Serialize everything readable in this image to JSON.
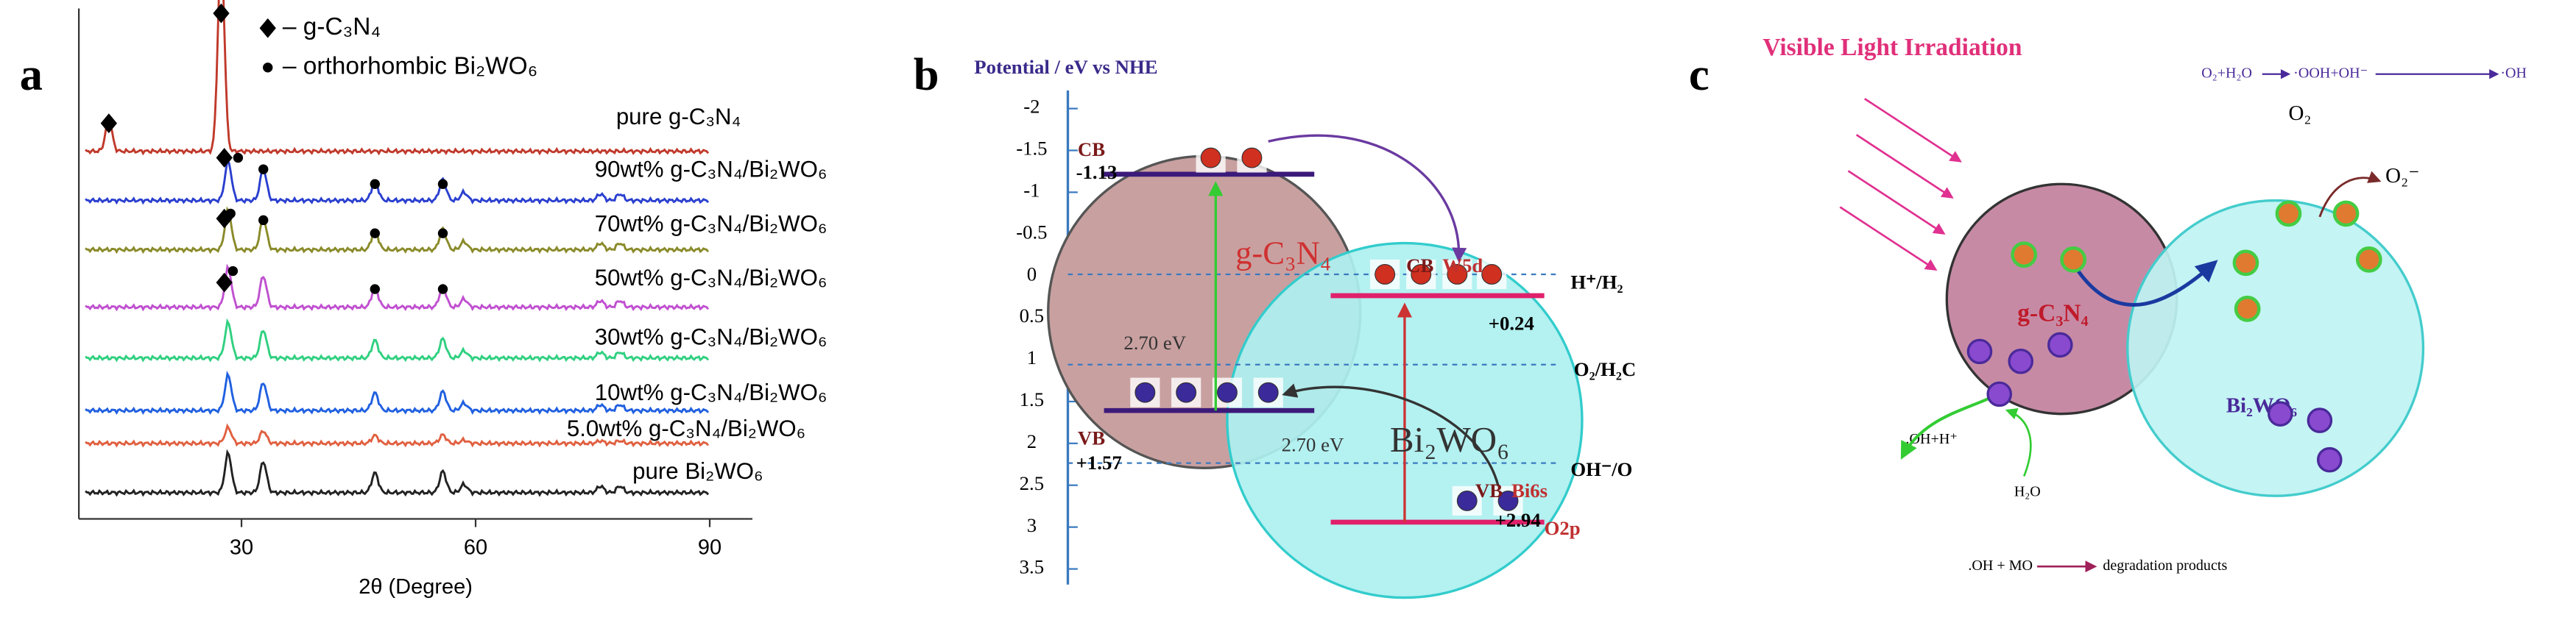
{
  "panel_a": {
    "label": "a",
    "legend": [
      "– g-C₃N₄",
      "– orthorhombic Bi₂WO₆"
    ],
    "curves": [
      "pure g-C₃N₄",
      "90wt% g-C₃N₄/Bi₂WO₆",
      "70wt% g-C₃N₄/Bi₂WO₆",
      "50wt% g-C₃N₄/Bi₂WO₆",
      "30wt% g-C₃N₄/Bi₂WO₆",
      "10wt% g-C₃N₄/Bi₂WO₆",
      "5.0wt% g-C₃N₄/Bi₂WO₆",
      "pure Bi₂WO₆"
    ],
    "x_ticks": [
      30,
      60,
      90
    ],
    "x_label": "2θ (Degree)"
  },
  "panel_b": {
    "label": "b",
    "title": "Potential / eV vs NHE",
    "ticks": [
      -2,
      -1.5,
      -1,
      -0.5,
      0,
      0.5,
      1,
      1.5,
      2,
      2.5,
      3,
      3.5
    ],
    "texts": {
      "cb1": "CB",
      "cb1v": "-1.13",
      "gcn": "g-C₃N₄",
      "gap1": "2.70 eV",
      "vb1": "VB",
      "vb1v": "+1.57",
      "cb2": "CB",
      "w5d": "W5d",
      "cb2v": "+0.24",
      "h2": "H⁺/H₂",
      "o2": "O₂/H₂C",
      "bwo": "Bi₂WO₆",
      "gap2": "2.70 eV",
      "vb2": "VB",
      "bi6s": "Bi6s",
      "vb2v": "+2.94",
      "o2p": "O2p",
      "oh": "OH⁻/O"
    }
  },
  "panel_c": {
    "label": "c",
    "title": "Visible Light Irradiation",
    "texts": {
      "r1": "O₂+H₂O",
      "r2": "·OOH+OH⁻",
      "r3": "·OH",
      "o2": "O₂",
      "o2m": "O₂⁻",
      "gcn": "g-C₃N₄",
      "bwo": "Bi₂WO₆",
      "ohh": ".OH+H⁺",
      "h2o": "H₂O",
      "mo": ".OH + MO",
      "deg": "degradation products"
    }
  }
}
